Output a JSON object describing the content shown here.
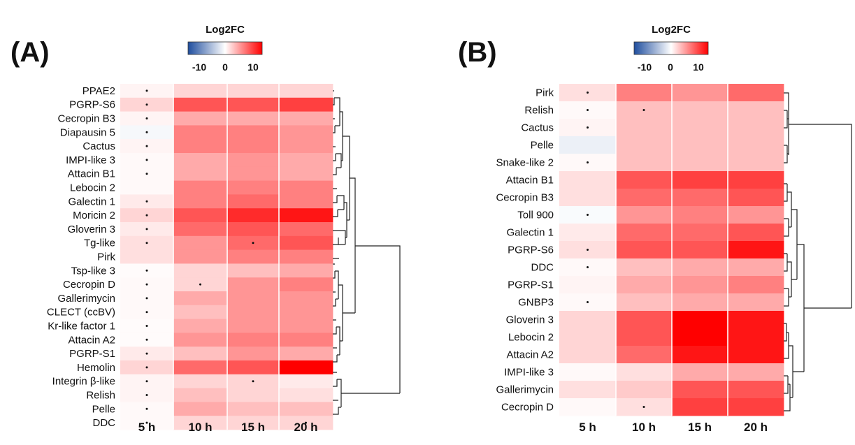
{
  "chart_data": [
    {
      "type": "heatmap",
      "panel_label": "(A)",
      "legend": {
        "title": "Log2FC",
        "ticks": [
          "-10",
          "0",
          "10"
        ],
        "range": [
          -12,
          12
        ]
      },
      "columns": [
        "5 h",
        "10 h",
        "15 h",
        "20 h"
      ],
      "rows": [
        "PPAE2",
        "PGRP-S6",
        "Cecropin B3",
        "Diapausin 5",
        "Cactus",
        "IMPI-like 3",
        "Attacin B1",
        "Lebocin 2",
        "Galectin 1",
        "Moricin 2",
        "Gloverin 3",
        "Tg-like",
        "Pirk",
        "Tsp-like 3",
        "Cecropin D",
        "Gallerimycin",
        "CLECT (ccBV)",
        "Kr-like factor 1",
        "Attacin A2",
        "PGRP-S1",
        "Hemolin",
        "Integrin β-like",
        "Relish",
        "Pelle",
        "DDC"
      ],
      "values": [
        [
          0.5,
          2,
          2,
          2
        ],
        [
          2,
          8,
          8,
          9
        ],
        [
          0.5,
          4,
          4,
          4
        ],
        [
          -0.5,
          6,
          6,
          5
        ],
        [
          0.5,
          6,
          6,
          5
        ],
        [
          0.3,
          4,
          5,
          4
        ],
        [
          0.3,
          4,
          5,
          4
        ],
        [
          0.3,
          6,
          6,
          6
        ],
        [
          1,
          6,
          7,
          6
        ],
        [
          2,
          8,
          10,
          11
        ],
        [
          1,
          7,
          8,
          7
        ],
        [
          1.5,
          5,
          7,
          8
        ],
        [
          1.5,
          5,
          6,
          6
        ],
        [
          0.2,
          2,
          3,
          4
        ],
        [
          0.3,
          2,
          5,
          6
        ],
        [
          0.3,
          4,
          5,
          5
        ],
        [
          0.3,
          3,
          5,
          5
        ],
        [
          0.2,
          4,
          5,
          5
        ],
        [
          0.2,
          5,
          6,
          6
        ],
        [
          1,
          3,
          5,
          4
        ],
        [
          2,
          7,
          8,
          12
        ],
        [
          0.5,
          2,
          2,
          1
        ],
        [
          0.5,
          3,
          2,
          1.5
        ],
        [
          0.3,
          4,
          3,
          3
        ],
        [
          0.3,
          2,
          2,
          2
        ]
      ],
      "significant_not_marked": [
        [
          true,
          false,
          false,
          false
        ],
        [
          true,
          false,
          false,
          false
        ],
        [
          true,
          false,
          false,
          false
        ],
        [
          true,
          false,
          false,
          false
        ],
        [
          true,
          false,
          false,
          false
        ],
        [
          true,
          false,
          false,
          false
        ],
        [
          true,
          false,
          false,
          false
        ],
        [
          false,
          false,
          false,
          false
        ],
        [
          true,
          false,
          false,
          false
        ],
        [
          true,
          false,
          false,
          false
        ],
        [
          true,
          false,
          false,
          false
        ],
        [
          true,
          false,
          true,
          false
        ],
        [
          false,
          false,
          false,
          false
        ],
        [
          true,
          false,
          false,
          false
        ],
        [
          true,
          true,
          false,
          false
        ],
        [
          true,
          false,
          false,
          false
        ],
        [
          true,
          false,
          false,
          false
        ],
        [
          true,
          false,
          false,
          false
        ],
        [
          true,
          false,
          false,
          false
        ],
        [
          true,
          false,
          false,
          false
        ],
        [
          true,
          false,
          false,
          false
        ],
        [
          true,
          false,
          true,
          false
        ],
        [
          true,
          false,
          false,
          false
        ],
        [
          true,
          false,
          false,
          false
        ],
        [
          true,
          false,
          false,
          true
        ]
      ]
    },
    {
      "type": "heatmap",
      "panel_label": "(B)",
      "legend": {
        "title": "Log2FC",
        "ticks": [
          "-10",
          "0",
          "10"
        ],
        "range": [
          -12,
          12
        ]
      },
      "columns": [
        "5 h",
        "10 h",
        "15 h",
        "20 h"
      ],
      "rows": [
        "Pirk",
        "Relish",
        "Cactus",
        "Pelle",
        "Snake-like 2",
        "Attacin B1",
        "Cecropin B3",
        "Toll 900",
        "Galectin 1",
        "PGRP-S6",
        "DDC",
        "PGRP-S1",
        "GNBP3",
        "Gloverin 3",
        "Lebocin 2",
        "Attacin A2",
        "IMPI-like 3",
        "Gallerimycin",
        "Cecropin D"
      ],
      "values": [
        [
          1.5,
          6,
          5,
          7
        ],
        [
          0.3,
          3,
          3,
          3
        ],
        [
          0.5,
          3,
          3,
          3
        ],
        [
          -1,
          3,
          3,
          3
        ],
        [
          0.3,
          3,
          3,
          3
        ],
        [
          1.5,
          8,
          9,
          9
        ],
        [
          1.5,
          7,
          7,
          8
        ],
        [
          -0.3,
          5,
          6,
          5
        ],
        [
          1,
          7,
          7,
          8
        ],
        [
          1.5,
          8,
          8,
          11
        ],
        [
          0.3,
          3,
          4,
          4
        ],
        [
          0.5,
          4,
          5,
          6
        ],
        [
          0.3,
          3,
          4,
          4
        ],
        [
          2,
          8,
          12,
          11
        ],
        [
          2,
          8,
          12,
          11
        ],
        [
          2,
          7,
          11,
          11
        ],
        [
          0.3,
          1.5,
          4,
          4
        ],
        [
          1.5,
          2.5,
          8,
          8
        ],
        [
          0.3,
          1.5,
          9,
          9
        ]
      ],
      "significant_not_marked": [
        [
          true,
          false,
          false,
          false
        ],
        [
          true,
          true,
          false,
          false
        ],
        [
          true,
          false,
          false,
          false
        ],
        [
          false,
          false,
          false,
          false
        ],
        [
          true,
          false,
          false,
          false
        ],
        [
          false,
          false,
          false,
          false
        ],
        [
          false,
          false,
          false,
          false
        ],
        [
          true,
          false,
          false,
          false
        ],
        [
          false,
          false,
          false,
          false
        ],
        [
          true,
          false,
          false,
          false
        ],
        [
          true,
          false,
          false,
          false
        ],
        [
          false,
          false,
          false,
          false
        ],
        [
          true,
          false,
          false,
          false
        ],
        [
          false,
          false,
          false,
          false
        ],
        [
          false,
          false,
          false,
          false
        ],
        [
          false,
          false,
          false,
          false
        ],
        [
          false,
          false,
          false,
          false
        ],
        [
          false,
          false,
          false,
          false
        ],
        [
          false,
          true,
          false,
          false
        ]
      ]
    }
  ]
}
